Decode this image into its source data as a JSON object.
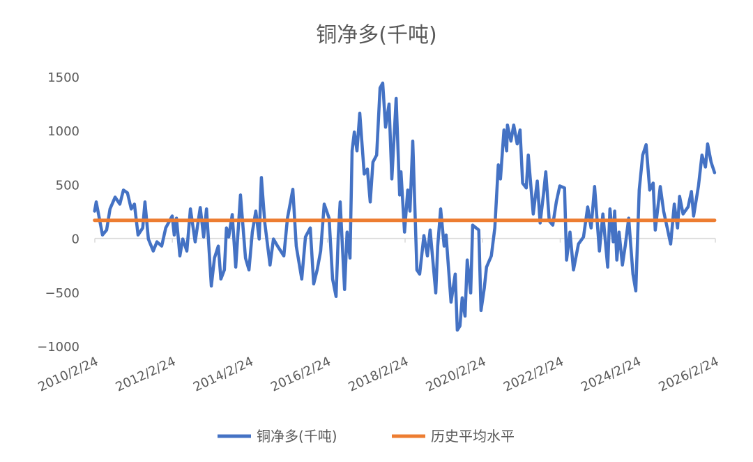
{
  "chart_data": {
    "type": "line",
    "title": "铜净多(千吨)",
    "xlabel": "",
    "ylabel": "",
    "ylim": [
      -1000,
      1500
    ],
    "yticks": [
      "1500",
      "1000",
      "500",
      "0",
      "−500",
      "−1000"
    ],
    "ytick_values": [
      1500,
      1000,
      500,
      0,
      -500,
      -1000
    ],
    "xlim": [
      "2010-02-24",
      "2026-02-24"
    ],
    "xticks": [
      "2010/2/24",
      "2012/2/24",
      "2014/2/24",
      "2016/2/24",
      "2018/2/24",
      "2020/2/24",
      "2022/2/24",
      "2024/2/24",
      "2026/2/24"
    ],
    "xtick_dates": [
      "2010-02-24",
      "2012-02-24",
      "2014-02-24",
      "2016-02-24",
      "2018-02-24",
      "2020-02-24",
      "2022-02-24",
      "2024-02-24",
      "2026-02-24"
    ],
    "grid": false,
    "legend_position": "bottom",
    "series": [
      {
        "name": "铜净多(千吨)",
        "color": "#4472C4",
        "points": [
          [
            "2010-02-22",
            253
          ],
          [
            "2010-03-09",
            338
          ],
          [
            "2010-05-07",
            32
          ],
          [
            "2010-06-15",
            78
          ],
          [
            "2010-07-17",
            273
          ],
          [
            "2010-09-03",
            383
          ],
          [
            "2010-10-18",
            318
          ],
          [
            "2010-11-20",
            448
          ],
          [
            "2010-12-28",
            422
          ],
          [
            "2011-02-02",
            273
          ],
          [
            "2011-03-04",
            318
          ],
          [
            "2011-04-07",
            32
          ],
          [
            "2011-05-21",
            97
          ],
          [
            "2011-06-11",
            338
          ],
          [
            "2011-07-13",
            -6
          ],
          [
            "2011-08-28",
            -117
          ],
          [
            "2011-10-02",
            -32
          ],
          [
            "2011-11-16",
            -71
          ],
          [
            "2011-12-24",
            97
          ],
          [
            "2012-02-23",
            208
          ],
          [
            "2012-03-13",
            32
          ],
          [
            "2012-04-03",
            188
          ],
          [
            "2012-05-05",
            -162
          ],
          [
            "2012-06-01",
            -6
          ],
          [
            "2012-07-10",
            -117
          ],
          [
            "2012-08-12",
            273
          ],
          [
            "2012-09-26",
            -32
          ],
          [
            "2012-11-13",
            286
          ],
          [
            "2012-12-15",
            13
          ],
          [
            "2013-01-11",
            273
          ],
          [
            "2013-02-25",
            -442
          ],
          [
            "2013-03-27",
            -182
          ],
          [
            "2013-05-02",
            -71
          ],
          [
            "2013-05-26",
            -377
          ],
          [
            "2013-06-28",
            -292
          ],
          [
            "2013-07-18",
            97
          ],
          [
            "2013-08-08",
            13
          ],
          [
            "2013-09-10",
            221
          ],
          [
            "2013-10-13",
            -266
          ],
          [
            "2013-11-27",
            403
          ],
          [
            "2014-01-13",
            -182
          ],
          [
            "2014-02-15",
            -292
          ],
          [
            "2014-03-18",
            58
          ],
          [
            "2014-04-20",
            253
          ],
          [
            "2014-05-22",
            -6
          ],
          [
            "2014-06-12",
            565
          ],
          [
            "2014-07-14",
            143
          ],
          [
            "2014-09-01",
            -247
          ],
          [
            "2014-10-03",
            -6
          ],
          [
            "2014-11-11",
            -71
          ],
          [
            "2015-01-09",
            -162
          ],
          [
            "2015-02-12",
            188
          ],
          [
            "2015-04-04",
            455
          ],
          [
            "2015-05-06",
            -71
          ],
          [
            "2015-06-27",
            -377
          ],
          [
            "2015-08-01",
            13
          ],
          [
            "2015-09-15",
            97
          ],
          [
            "2015-10-17",
            -422
          ],
          [
            "2015-11-19",
            -292
          ],
          [
            "2015-12-22",
            -117
          ],
          [
            "2016-01-24",
            318
          ],
          [
            "2016-03-10",
            188
          ],
          [
            "2016-04-12",
            -377
          ],
          [
            "2016-05-15",
            -539
          ],
          [
            "2016-06-05",
            32
          ],
          [
            "2016-06-23",
            338
          ],
          [
            "2016-08-03",
            -474
          ],
          [
            "2016-08-27",
            58
          ],
          [
            "2016-09-23",
            -182
          ],
          [
            "2016-10-13",
            812
          ],
          [
            "2016-11-03",
            987
          ],
          [
            "2016-11-28",
            812
          ],
          [
            "2016-12-24",
            1162
          ],
          [
            "2017-02-04",
            597
          ],
          [
            "2017-03-06",
            643
          ],
          [
            "2017-04-02",
            338
          ],
          [
            "2017-04-27",
            708
          ],
          [
            "2017-06-01",
            773
          ],
          [
            "2017-07-03",
            1396
          ],
          [
            "2017-07-28",
            1442
          ],
          [
            "2017-08-24",
            1032
          ],
          [
            "2017-09-26",
            1247
          ],
          [
            "2017-10-22",
            552
          ],
          [
            "2017-12-02",
            1299
          ],
          [
            "2018-01-04",
            403
          ],
          [
            "2018-01-16",
            617
          ],
          [
            "2018-02-19",
            58
          ],
          [
            "2018-03-21",
            448
          ],
          [
            "2018-04-11",
            253
          ],
          [
            "2018-05-07",
            903
          ],
          [
            "2018-06-15",
            -292
          ],
          [
            "2018-07-11",
            -331
          ],
          [
            "2018-08-20",
            26
          ],
          [
            "2018-09-22",
            -162
          ],
          [
            "2018-10-18",
            78
          ],
          [
            "2018-12-10",
            -506
          ],
          [
            "2018-12-28",
            -71
          ],
          [
            "2019-01-25",
            273
          ],
          [
            "2019-02-27",
            -71
          ],
          [
            "2019-03-17",
            32
          ],
          [
            "2019-05-03",
            -591
          ],
          [
            "2019-06-11",
            -331
          ],
          [
            "2019-07-01",
            -851
          ],
          [
            "2019-07-26",
            -812
          ],
          [
            "2019-08-16",
            -552
          ],
          [
            "2019-09-12",
            -721
          ],
          [
            "2019-10-02",
            -201
          ],
          [
            "2019-11-04",
            -506
          ],
          [
            "2019-11-22",
            123
          ],
          [
            "2020-01-19",
            78
          ],
          [
            "2020-02-09",
            -669
          ],
          [
            "2020-03-11",
            -461
          ],
          [
            "2020-04-01",
            -266
          ],
          [
            "2020-05-16",
            -162
          ],
          [
            "2020-06-18",
            97
          ],
          [
            "2020-07-21",
            682
          ],
          [
            "2020-08-10",
            552
          ],
          [
            "2020-09-12",
            1006
          ],
          [
            "2020-10-08",
            812
          ],
          [
            "2020-10-15",
            1052
          ],
          [
            "2020-11-17",
            903
          ],
          [
            "2020-12-13",
            1052
          ],
          [
            "2021-01-15",
            877
          ],
          [
            "2021-02-11",
            1006
          ],
          [
            "2021-03-07",
            513
          ],
          [
            "2021-04-10",
            468
          ],
          [
            "2021-04-29",
            773
          ],
          [
            "2021-06-15",
            227
          ],
          [
            "2021-07-23",
            532
          ],
          [
            "2021-08-19",
            143
          ],
          [
            "2021-09-21",
            422
          ],
          [
            "2021-10-11",
            617
          ],
          [
            "2021-11-13",
            162
          ],
          [
            "2021-12-16",
            123
          ],
          [
            "2022-01-18",
            338
          ],
          [
            "2022-02-20",
            487
          ],
          [
            "2022-04-06",
            468
          ],
          [
            "2022-04-25",
            -201
          ],
          [
            "2022-05-27",
            58
          ],
          [
            "2022-06-29",
            -292
          ],
          [
            "2022-08-15",
            -52
          ],
          [
            "2022-10-01",
            13
          ],
          [
            "2022-11-10",
            292
          ],
          [
            "2022-12-12",
            97
          ],
          [
            "2023-01-14",
            481
          ],
          [
            "2023-02-28",
            -117
          ],
          [
            "2023-04-02",
            227
          ],
          [
            "2023-05-17",
            -266
          ],
          [
            "2023-06-07",
            273
          ],
          [
            "2023-07-09",
            -32
          ],
          [
            "2023-07-22",
            253
          ],
          [
            "2023-08-11",
            -201
          ],
          [
            "2023-09-01",
            58
          ],
          [
            "2023-10-03",
            -247
          ],
          [
            "2023-10-29",
            -71
          ],
          [
            "2023-12-01",
            188
          ],
          [
            "2024-01-10",
            -331
          ],
          [
            "2024-02-06",
            -487
          ],
          [
            "2024-03-09",
            448
          ],
          [
            "2024-04-11",
            773
          ],
          [
            "2024-05-13",
            870
          ],
          [
            "2024-06-16",
            448
          ],
          [
            "2024-07-18",
            513
          ],
          [
            "2024-08-07",
            78
          ],
          [
            "2024-09-23",
            481
          ],
          [
            "2024-10-25",
            253
          ],
          [
            "2024-11-28",
            97
          ],
          [
            "2024-12-30",
            -52
          ],
          [
            "2025-02-02",
            318
          ],
          [
            "2025-03-05",
            97
          ],
          [
            "2025-03-24",
            390
          ],
          [
            "2025-04-26",
            227
          ],
          [
            "2025-06-12",
            292
          ],
          [
            "2025-07-14",
            435
          ],
          [
            "2025-08-03",
            208
          ],
          [
            "2025-09-18",
            487
          ],
          [
            "2025-10-21",
            773
          ],
          [
            "2025-11-23",
            662
          ],
          [
            "2025-12-13",
            877
          ],
          [
            "2026-01-15",
            708
          ],
          [
            "2026-02-17",
            610
          ]
        ]
      },
      {
        "name": "历史平均水平",
        "color": "#ED7D31",
        "points": [
          [
            "2010-02-22",
            168
          ],
          [
            "2026-02-17",
            168
          ]
        ]
      }
    ]
  }
}
